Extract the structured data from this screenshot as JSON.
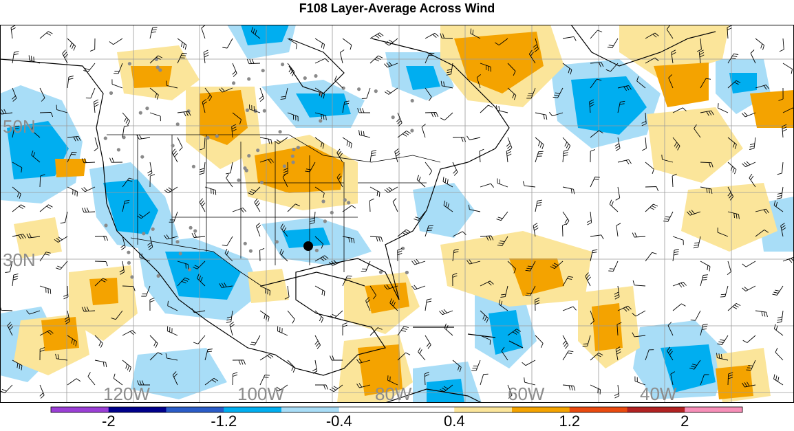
{
  "title": "F108 Layer-Average Across Wind",
  "map": {
    "lat_labels": [
      "50N",
      "30N"
    ],
    "lon_labels": [
      "120W",
      "100W",
      "80W",
      "60W",
      "40W"
    ],
    "marker": "black dot"
  },
  "colorbar": {
    "colors": [
      "#9b3fd6",
      "#00008b",
      "#2a5cc8",
      "#00aef0",
      "#a8ddf7",
      "#ffffff",
      "#ffffff",
      "#fbe59a",
      "#f4a300",
      "#ea4a0f",
      "#b22222",
      "#f78fb8"
    ],
    "tick_labels": [
      "-2",
      "-1.2",
      "-0.4",
      "0.4",
      "1.2",
      "2"
    ]
  },
  "colors": {
    "neg_light": "#a8ddf7",
    "neg_mid": "#00aef0",
    "pos_light": "#fbe59a",
    "pos_mid": "#f4a300",
    "grid": "#9a9a9a",
    "label": "#8c8c8c"
  }
}
